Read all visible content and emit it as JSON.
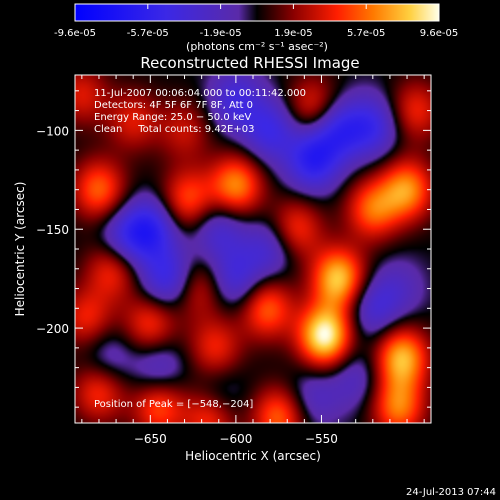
{
  "colorbar": {
    "ticks": [
      "-9.6e-05",
      "-5.7e-05",
      "-1.9e-05",
      "1.9e-05",
      "5.7e-05",
      "9.6e-05"
    ],
    "range": [
      -9.6e-05,
      9.6e-05
    ],
    "unit_label": "(photons cm⁻² s⁻¹ asec⁻²)"
  },
  "chart_data": {
    "type": "heatmap",
    "title": "Reconstructed RHESSI Image",
    "xlabel": "Heliocentric X (arcsec)",
    "ylabel": "Heliocentric Y (arcsec)",
    "xlim": [
      -694,
      -486
    ],
    "ylim": [
      -248,
      -72
    ],
    "xticks": [
      -650,
      -600,
      -550
    ],
    "xtick_labels": [
      "−650",
      "−600",
      "−550"
    ],
    "yticks": [
      -100,
      -150,
      -200
    ],
    "ytick_labels": [
      "−100",
      "−150",
      "−200"
    ],
    "annotations": [
      "11-Jul-2007 00:06:04.000 to 00:11:42.000",
      "Detectors: 4F 5F 6F 7F 8F, Att 0",
      "Energy Range: 25.0 − 50.0 keV",
      "Clean     Total counts: 9.42E+03"
    ],
    "peak_label": "Position of Peak = [−548,−204]",
    "peak": [
      -548,
      -204
    ],
    "blobs": [
      {
        "x": -548,
        "y": -204,
        "v": 9.6e-05
      },
      {
        "x": -540,
        "y": -175,
        "v": 8e-05
      },
      {
        "x": -503,
        "y": -215,
        "v": 7.5e-05
      },
      {
        "x": -500,
        "y": -130,
        "v": 6.5e-05
      },
      {
        "x": -520,
        "y": -140,
        "v": 5.5e-05
      },
      {
        "x": -505,
        "y": -240,
        "v": 6e-05
      },
      {
        "x": -575,
        "y": -245,
        "v": 5.5e-05
      },
      {
        "x": -615,
        "y": -245,
        "v": 5e-05
      },
      {
        "x": -645,
        "y": -240,
        "v": 5e-05
      },
      {
        "x": -680,
        "y": -232,
        "v": 4.5e-05
      },
      {
        "x": -582,
        "y": -190,
        "v": 5.5e-05
      },
      {
        "x": -565,
        "y": -150,
        "v": 4.5e-05
      },
      {
        "x": -600,
        "y": -128,
        "v": 6.5e-05
      },
      {
        "x": -628,
        "y": -135,
        "v": 5e-05
      },
      {
        "x": -680,
        "y": -130,
        "v": 5.5e-05
      },
      {
        "x": -672,
        "y": -170,
        "v": 4.5e-05
      },
      {
        "x": -687,
        "y": -195,
        "v": 4e-05
      },
      {
        "x": -650,
        "y": -198,
        "v": 4.5e-05
      },
      {
        "x": -612,
        "y": -210,
        "v": 4e-05
      },
      {
        "x": -622,
        "y": -180,
        "v": 3.5e-05
      },
      {
        "x": -555,
        "y": -88,
        "v": 4e-05
      },
      {
        "x": -495,
        "y": -90,
        "v": 4e-05
      },
      {
        "x": -690,
        "y": -82,
        "v": 3.5e-05
      },
      {
        "x": -630,
        "y": -100,
        "v": 3e-05
      },
      {
        "x": -660,
        "y": -95,
        "v": 3.5e-05
      },
      {
        "x": -650,
        "y": -150,
        "v": -5.5e-05
      },
      {
        "x": -640,
        "y": -175,
        "v": -5e-05
      },
      {
        "x": -665,
        "y": -155,
        "v": -4e-05
      },
      {
        "x": -555,
        "y": -115,
        "v": -6e-05
      },
      {
        "x": -540,
        "y": -100,
        "v": -5e-05
      },
      {
        "x": -520,
        "y": -98,
        "v": -4.5e-05
      },
      {
        "x": -580,
        "y": -100,
        "v": -4.5e-05
      },
      {
        "x": -600,
        "y": -85,
        "v": -4e-05
      },
      {
        "x": -580,
        "y": -160,
        "v": -3.5e-05
      },
      {
        "x": -610,
        "y": -150,
        "v": -3.5e-05
      },
      {
        "x": -600,
        "y": -175,
        "v": -4e-05
      },
      {
        "x": -645,
        "y": -220,
        "v": -3e-05
      },
      {
        "x": -610,
        "y": -235,
        "v": -2.5e-05
      },
      {
        "x": -675,
        "y": -215,
        "v": -2.5e-05
      },
      {
        "x": -520,
        "y": -190,
        "v": -3.5e-05
      },
      {
        "x": -555,
        "y": -235,
        "v": -2.5e-05
      },
      {
        "x": -505,
        "y": -180,
        "v": -2e-05
      },
      {
        "x": -530,
        "y": -225,
        "v": -2.5e-05
      }
    ]
  },
  "footer": {
    "timestamp": "24-Jul-2013 07:44"
  }
}
